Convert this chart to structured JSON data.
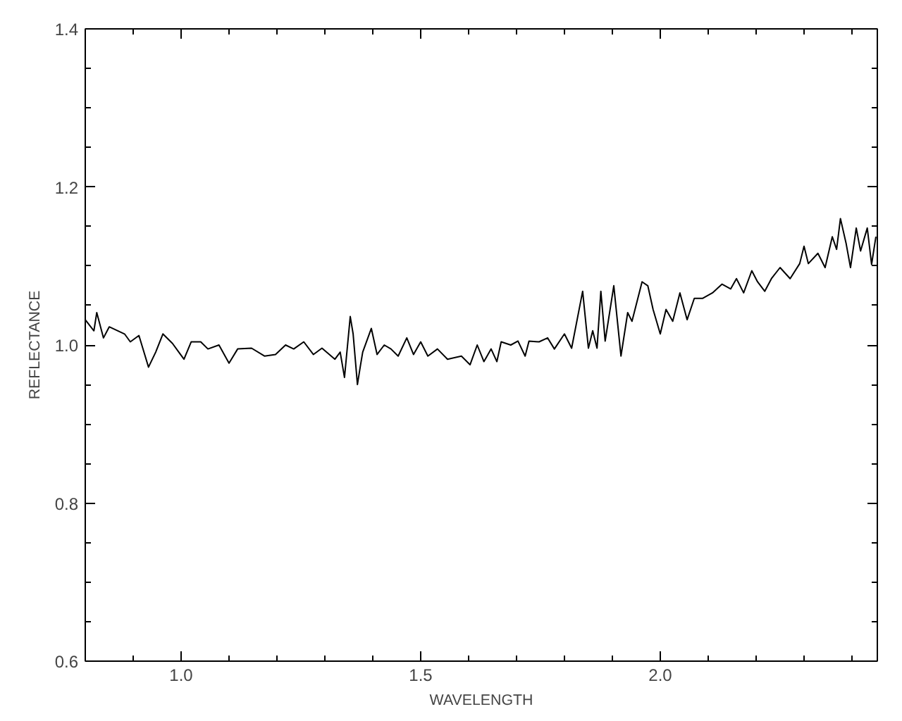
{
  "chart_data": {
    "type": "line",
    "xlabel": "WAVELENGTH",
    "ylabel": "REFLECTANCE",
    "xlim": [
      0.8,
      2.453
    ],
    "ylim": [
      0.6,
      1.4
    ],
    "xticks": [
      {
        "value": 0.9,
        "label": null
      },
      {
        "value": 1,
        "label": "1.0"
      },
      {
        "value": 1.1,
        "label": null
      },
      {
        "value": 1.2,
        "label": null
      },
      {
        "value": 1.3,
        "label": null
      },
      {
        "value": 1.4,
        "label": null
      },
      {
        "value": 1.5,
        "label": "1.5"
      },
      {
        "value": 1.6,
        "label": null
      },
      {
        "value": 1.7,
        "label": null
      },
      {
        "value": 1.8,
        "label": null
      },
      {
        "value": 1.9,
        "label": null
      },
      {
        "value": 2,
        "label": "2.0"
      },
      {
        "value": 2.1,
        "label": null
      },
      {
        "value": 2.2,
        "label": null
      },
      {
        "value": 2.3,
        "label": null
      },
      {
        "value": 2.4,
        "label": null
      }
    ],
    "yticks": [
      0.6,
      {
        "value": 0.65,
        "label": null
      },
      {
        "value": 0.7,
        "label": null
      },
      {
        "value": 0.75,
        "label": null
      },
      0.8,
      {
        "value": 0.85,
        "label": null
      },
      {
        "value": 0.9,
        "label": null
      },
      {
        "value": 0.95,
        "label": null
      },
      {
        "value": 1,
        "label": "1.0"
      },
      {
        "value": 1.05,
        "label": null
      },
      {
        "value": 1.1,
        "label": null
      },
      {
        "value": 1.15,
        "label": null
      },
      1.2,
      {
        "value": 1.25,
        "label": null
      },
      {
        "value": 1.3,
        "label": null
      },
      {
        "value": 1.35,
        "label": null
      },
      1.4
    ],
    "grid": false,
    "marker": "none",
    "line_style": "solid",
    "x": [
      0.8,
      0.818,
      0.824,
      0.838,
      0.85,
      0.882,
      0.894,
      0.912,
      0.932,
      0.947,
      0.962,
      0.982,
      1.006,
      1.021,
      1.041,
      1.056,
      1.079,
      1.1,
      1.118,
      1.147,
      1.174,
      1.197,
      1.218,
      1.235,
      1.256,
      1.276,
      1.294,
      1.321,
      1.332,
      1.341,
      1.353,
      1.359,
      1.368,
      1.374,
      1.379,
      1.397,
      1.409,
      1.424,
      1.438,
      1.453,
      1.471,
      1.485,
      1.5,
      1.515,
      1.535,
      1.556,
      1.585,
      1.603,
      1.618,
      1.632,
      1.647,
      1.659,
      1.668,
      1.688,
      1.703,
      1.718,
      1.726,
      1.747,
      1.765,
      1.779,
      1.8,
      1.815,
      1.838,
      1.85,
      1.859,
      1.868,
      1.876,
      1.885,
      1.903,
      1.918,
      1.932,
      1.941,
      1.962,
      1.974,
      1.985,
      2.0,
      2.012,
      2.026,
      2.041,
      2.056,
      2.071,
      2.088,
      2.109,
      2.129,
      2.147,
      2.159,
      2.174,
      2.191,
      2.203,
      2.218,
      2.232,
      2.25,
      2.271,
      2.291,
      2.3,
      2.309,
      2.329,
      2.344,
      2.359,
      2.368,
      2.376,
      2.388,
      2.397,
      2.409,
      2.418,
      2.432,
      2.441,
      2.45
    ],
    "series": [
      {
        "color": "#000000",
        "values": [
          1.032,
          1.018,
          1.041,
          1.009,
          1.023,
          1.014,
          1.004,
          1.012,
          0.972,
          0.991,
          1.014,
          1.002,
          0.982,
          1.004,
          1.004,
          0.995,
          1.0,
          0.977,
          0.995,
          0.996,
          0.986,
          0.988,
          1.0,
          0.995,
          1.004,
          0.988,
          0.996,
          0.982,
          0.991,
          0.959,
          1.036,
          1.014,
          0.95,
          0.973,
          0.991,
          1.021,
          0.988,
          1.0,
          0.995,
          0.986,
          1.009,
          0.988,
          1.004,
          0.986,
          0.995,
          0.982,
          0.986,
          0.975,
          1.0,
          0.979,
          0.995,
          0.979,
          1.004,
          1.0,
          1.005,
          0.986,
          1.005,
          1.004,
          1.009,
          0.995,
          1.014,
          0.996,
          1.068,
          0.996,
          1.018,
          0.996,
          1.068,
          1.005,
          1.075,
          0.986,
          1.041,
          1.03,
          1.08,
          1.075,
          1.045,
          1.014,
          1.045,
          1.03,
          1.066,
          1.032,
          1.059,
          1.059,
          1.066,
          1.077,
          1.071,
          1.084,
          1.066,
          1.094,
          1.08,
          1.068,
          1.084,
          1.098,
          1.084,
          1.103,
          1.125,
          1.103,
          1.116,
          1.098,
          1.137,
          1.121,
          1.16,
          1.128,
          1.098,
          1.148,
          1.119,
          1.148,
          1.102,
          1.137
        ]
      }
    ]
  }
}
